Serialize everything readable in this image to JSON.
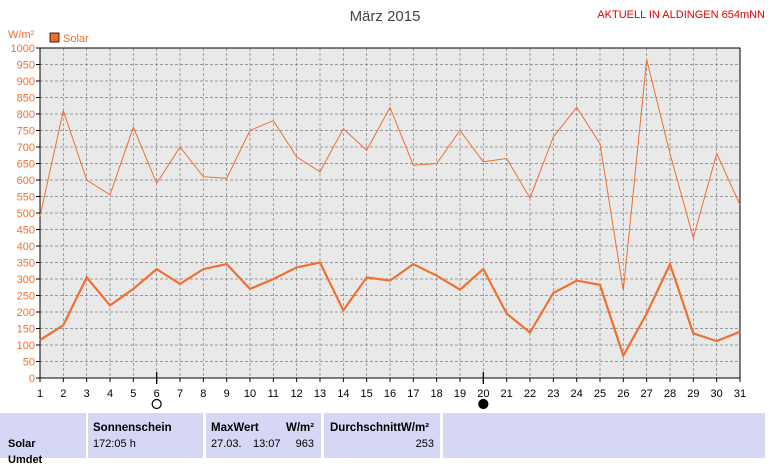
{
  "header": {
    "station": "AKTUELL IN ALDINGEN 654mNN"
  },
  "chart_data": {
    "type": "line",
    "title": "März 2015",
    "ylabel": "W/m²",
    "xlabel": "",
    "ylim": [
      0,
      1000
    ],
    "y_step": 50,
    "grid": true,
    "legend": "top-left",
    "x": [
      1,
      2,
      3,
      4,
      5,
      6,
      7,
      8,
      9,
      10,
      11,
      12,
      13,
      14,
      15,
      16,
      17,
      18,
      19,
      20,
      21,
      22,
      23,
      24,
      25,
      26,
      27,
      28,
      29,
      30,
      31
    ],
    "series": [
      {
        "name": "Solar",
        "values": [
          115,
          160,
          305,
          220,
          270,
          330,
          285,
          330,
          345,
          270,
          300,
          335,
          350,
          205,
          305,
          295,
          345,
          310,
          268,
          330,
          195,
          138,
          258,
          295,
          282,
          68,
          195,
          345,
          135,
          112,
          140
        ],
        "color": "#f07030",
        "width": 2.2
      },
      {
        "values": [
          490,
          810,
          600,
          555,
          760,
          590,
          700,
          610,
          605,
          750,
          780,
          670,
          625,
          755,
          690,
          820,
          645,
          650,
          750,
          655,
          665,
          545,
          730,
          820,
          710,
          265,
          965,
          680,
          425,
          680,
          525
        ],
        "color": "#f07030",
        "width": 1
      }
    ],
    "moon_markers": [
      {
        "day": 6,
        "phase": "full-moon"
      },
      {
        "day": 20,
        "phase": "new-moon"
      }
    ]
  },
  "colors": {
    "line": "#f07030",
    "grid": "#808080",
    "axis_text": "#f07030",
    "title": "#444444",
    "station": "#e00000",
    "footer_bg": "#d6d6f5"
  },
  "footer": {
    "row_label": "Solar",
    "row_sublabel": "Umdet",
    "sun_header": "Sonnenschein",
    "sun_value": "172:05 h",
    "max_header": "MaxWert",
    "max_unit": "W/m²",
    "max_date": "27.03.",
    "max_time": "13:07",
    "max_value": "963",
    "avg_header": "DurchschnittW/m²",
    "avg_value": "253"
  }
}
